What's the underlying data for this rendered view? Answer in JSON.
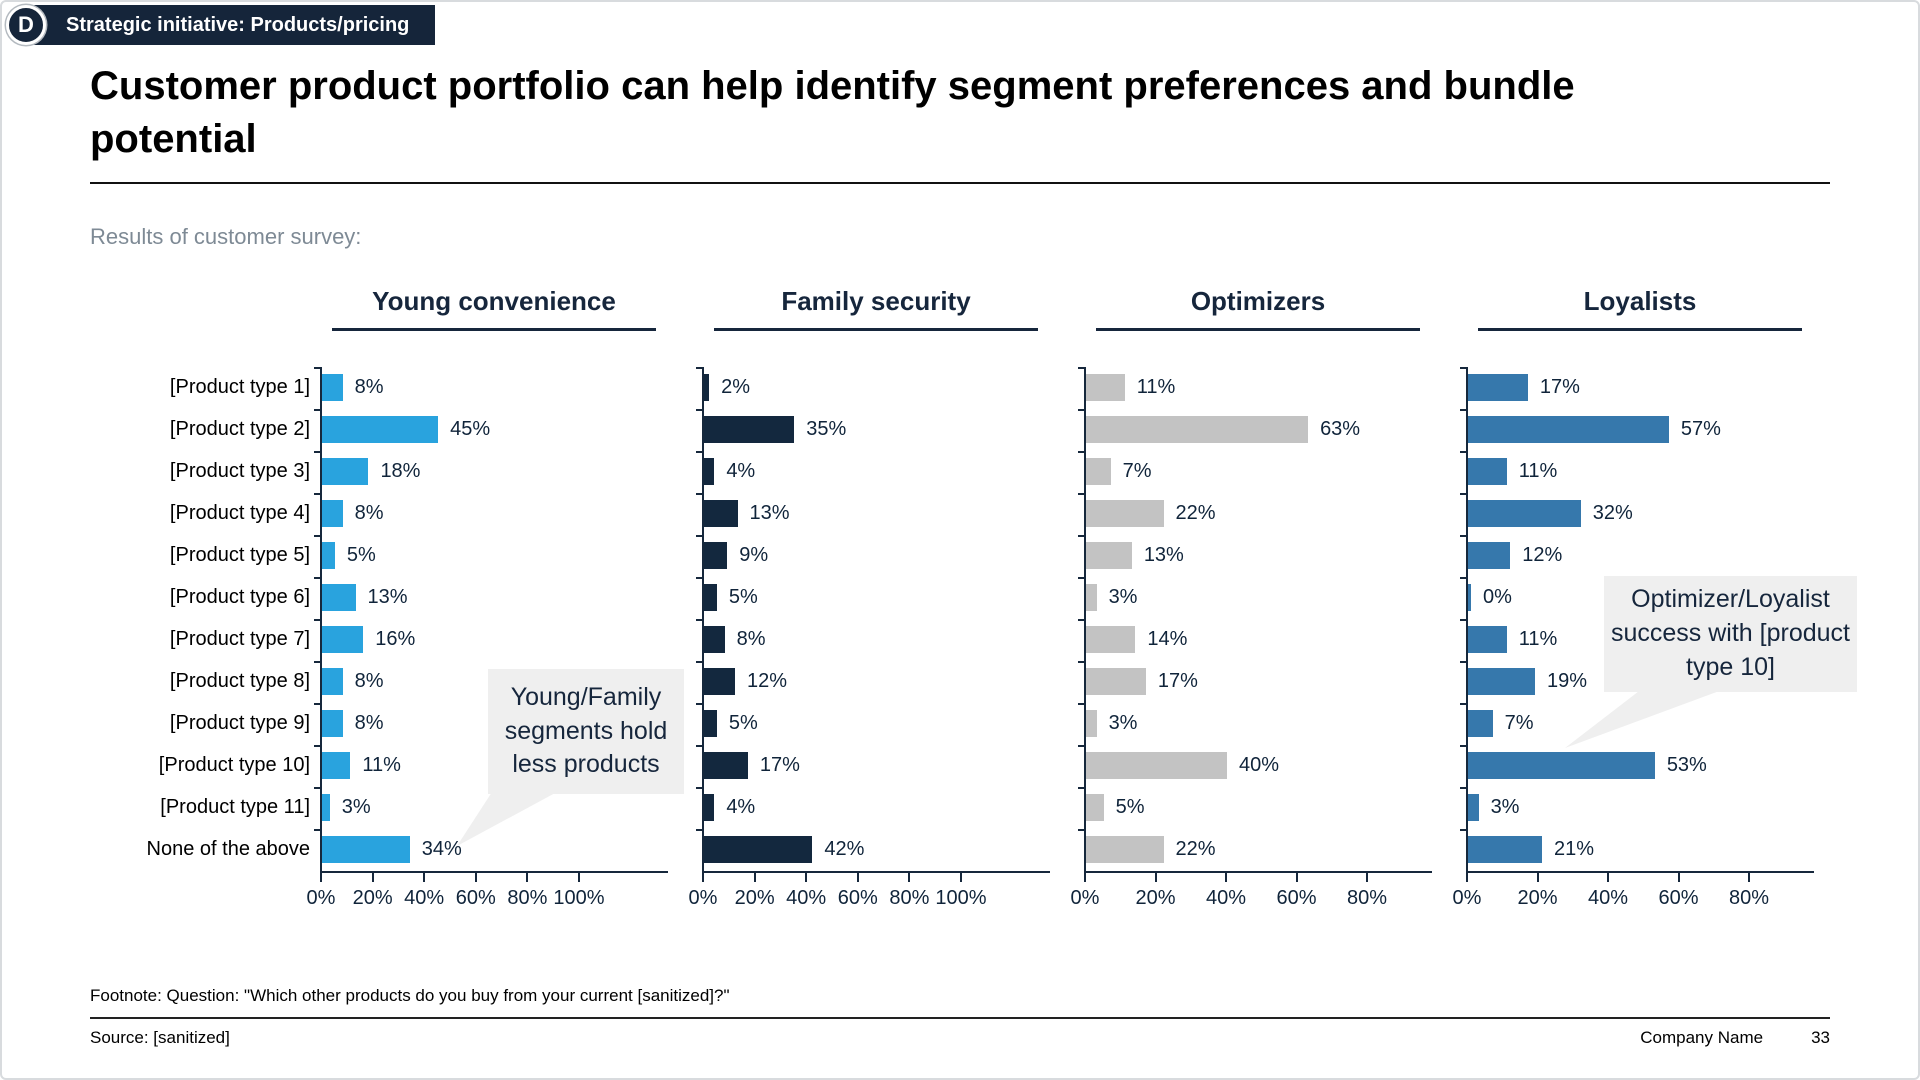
{
  "badge": {
    "letter": "D",
    "label": "Strategic initiative: Products/pricing"
  },
  "title": "Customer product portfolio can help identify segment preferences and bundle potential",
  "subtitle": "Results of customer survey:",
  "callouts": [
    {
      "text": "Young/Family segments hold less products"
    },
    {
      "text": "Optimizer/Loyalist success with [product type 10]"
    }
  ],
  "footnote": "Footnote: Question: \"Which other products do you buy from your current [sanitized]?\"",
  "source": "Source: [sanitized]",
  "footer": {
    "company": "Company Name",
    "page_number": "33"
  },
  "chart_data": {
    "type": "bar",
    "orientation": "horizontal",
    "title": "Results of customer survey",
    "grid": false,
    "legend_position": "none",
    "categories": [
      "[Product type 1]",
      "[Product type 2]",
      "[Product type 3]",
      "[Product type 4]",
      "[Product type 5]",
      "[Product type 6]",
      "[Product type 7]",
      "[Product type 8]",
      "[Product type 9]",
      "[Product type 10]",
      "[Product type 11]",
      "None of the above"
    ],
    "series": [
      {
        "name": "Young convenience",
        "color": "#29A3DE",
        "axis_max": 100,
        "tick_labels": [
          "0%",
          "20%",
          "40%",
          "60%",
          "80%",
          "100%"
        ],
        "values": [
          8,
          45,
          18,
          8,
          5,
          13,
          16,
          8,
          8,
          11,
          3,
          34
        ]
      },
      {
        "name": "Family security",
        "color": "#13283E",
        "axis_max": 100,
        "tick_labels": [
          "0%",
          "20%",
          "40%",
          "60%",
          "80%",
          "100%"
        ],
        "values": [
          2,
          35,
          4,
          13,
          9,
          5,
          8,
          12,
          5,
          17,
          4,
          42
        ]
      },
      {
        "name": "Optimizers",
        "color": "#C3C3C3",
        "axis_max": 80,
        "tick_labels": [
          "0%",
          "20%",
          "40%",
          "60%",
          "80%"
        ],
        "values": [
          11,
          63,
          7,
          22,
          13,
          3,
          14,
          17,
          3,
          40,
          5,
          22
        ]
      },
      {
        "name": "Loyalists",
        "color": "#3678AC",
        "axis_max": 80,
        "tick_labels": [
          "0%",
          "20%",
          "40%",
          "60%",
          "80%"
        ],
        "values": [
          17,
          57,
          11,
          32,
          12,
          0,
          11,
          19,
          7,
          53,
          3,
          21
        ]
      }
    ]
  }
}
